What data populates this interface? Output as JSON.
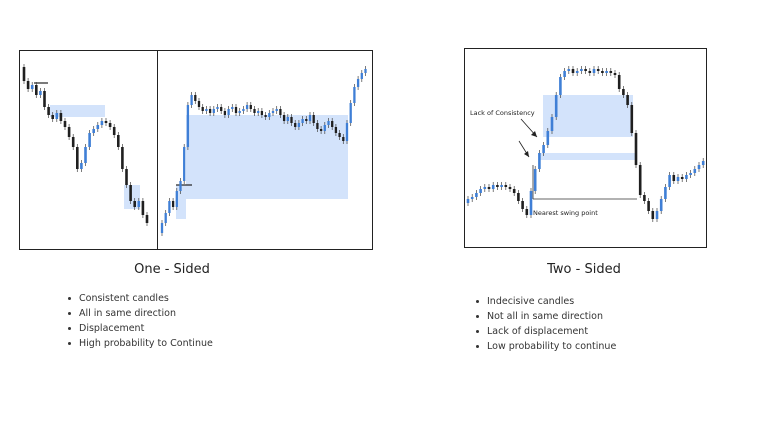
{
  "left": {
    "caption": "One - Sided",
    "bullets": [
      "Consistent candles",
      "All in same direction",
      "Displacement",
      "High probability to Continue"
    ]
  },
  "right": {
    "caption": "Two - Sided",
    "bullets": [
      "Indecisive candles",
      "Not all in same direction",
      "Lack of displacement",
      "Low probability to continue"
    ],
    "annotations": {
      "lack_of_consistency": "Lack of Consistency",
      "nearest_swing_point": "Nearest swing point"
    }
  },
  "colors": {
    "zone": "#d3e3fb",
    "bull": "#3f7fd6",
    "bear": "#1f1f1f",
    "wick": "#444444"
  }
}
